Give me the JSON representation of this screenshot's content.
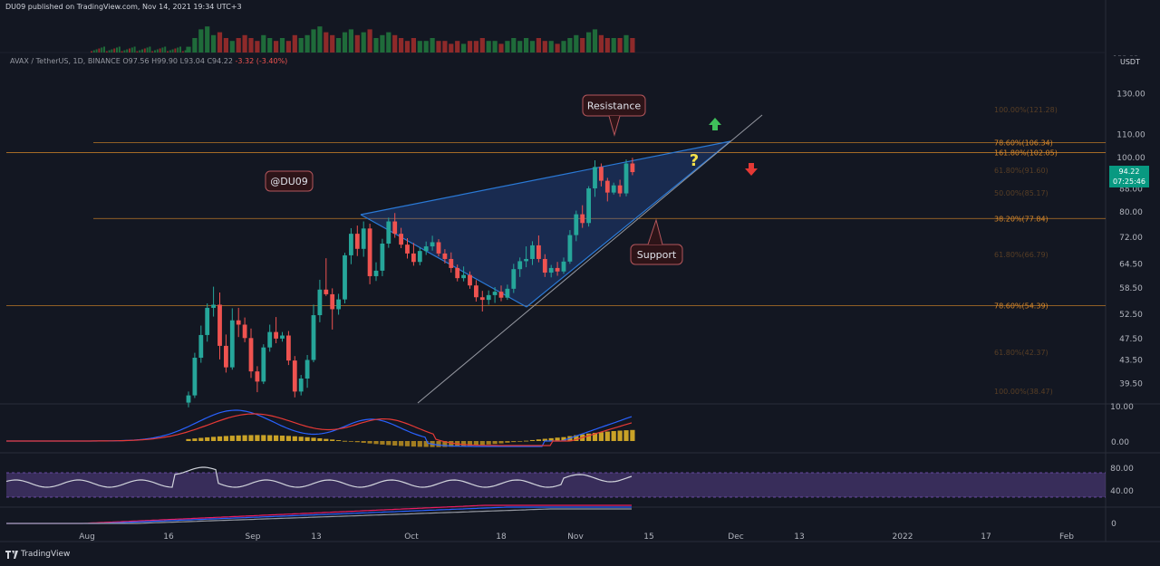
{
  "header": {
    "published": "DU09 published on TradingView.com, Nov 14, 2021 19:34 UTC+3",
    "symbol": "AVAX / TetherUS, 1D, BINANCE",
    "ohlc": "O97.56  H99.90  L93.04  C94.22",
    "change": "-3.32 (-3.40%)"
  },
  "brand": "TradingView",
  "currency": "USDT",
  "price_badge": {
    "price": "94.22",
    "countdown": "07:25:46",
    "color": "#089981"
  },
  "colors": {
    "up": "#26a69a",
    "down": "#ef5350",
    "background": "#131722",
    "fib": "#d8882a",
    "wedge": "#2a79d6"
  },
  "annotations": {
    "author_tag": "@DU09",
    "resistance": "Resistance",
    "support": "Support",
    "question": "?",
    "up_arrow": "green-up-arrow-icon",
    "down_arrow": "red-down-arrow-icon"
  },
  "chart_data": {
    "type": "candlestick",
    "y_scale": "log",
    "price_ticks": [
      "130.00",
      "110.00",
      "100.00",
      "88.00",
      "80.00",
      "72.00",
      "64.50",
      "58.50",
      "52.50",
      "47.50",
      "43.50",
      "39.50"
    ],
    "top_partial_tick": "150.00",
    "time_ticks": [
      "Aug",
      "16",
      "Sep",
      "13",
      "Oct",
      "18",
      "Nov",
      "15",
      "Dec",
      "13",
      "2022",
      "17",
      "Feb"
    ],
    "fib_levels": [
      {
        "label": "78.60%(106.34)",
        "price": 106.34
      },
      {
        "label": "161.80%(102.05)",
        "price": 102.05
      },
      {
        "label": "38.20%(77.84)",
        "price": 77.84
      },
      {
        "label": "78.60%(54.39)",
        "price": 54.39
      }
    ],
    "faded_levels": [
      "100.00%(121.28)",
      "61.80%(91.60)",
      "50.00%(85.17)",
      "61.80%(66.79)",
      "61.80%(42.37)",
      "100.00%(38.47)"
    ],
    "candles": [
      {
        "o": 36.5,
        "h": 38.2,
        "l": 35.8,
        "c": 37.6
      },
      {
        "o": 37.6,
        "h": 44.8,
        "l": 37.2,
        "c": 43.9
      },
      {
        "o": 43.9,
        "h": 50.1,
        "l": 43.0,
        "c": 48.2
      },
      {
        "o": 48.2,
        "h": 54.9,
        "l": 46.9,
        "c": 53.9
      },
      {
        "o": 53.9,
        "h": 58.8,
        "l": 52.0,
        "c": 54.6
      },
      {
        "o": 54.6,
        "h": 57.4,
        "l": 43.6,
        "c": 46.1
      },
      {
        "o": 46.1,
        "h": 48.3,
        "l": 41.3,
        "c": 42.2
      },
      {
        "o": 42.2,
        "h": 53.8,
        "l": 41.8,
        "c": 51.2
      },
      {
        "o": 51.2,
        "h": 53.9,
        "l": 47.8,
        "c": 50.3
      },
      {
        "o": 50.3,
        "h": 51.8,
        "l": 46.8,
        "c": 47.6
      },
      {
        "o": 47.6,
        "h": 49.5,
        "l": 40.4,
        "c": 41.5
      },
      {
        "o": 41.5,
        "h": 42.4,
        "l": 38.1,
        "c": 39.8
      },
      {
        "o": 39.8,
        "h": 46.4,
        "l": 39.4,
        "c": 45.8
      },
      {
        "o": 45.8,
        "h": 50.3,
        "l": 45.0,
        "c": 48.8
      },
      {
        "o": 48.8,
        "h": 51.9,
        "l": 46.6,
        "c": 47.5
      },
      {
        "o": 47.5,
        "h": 48.8,
        "l": 46.9,
        "c": 48.1
      },
      {
        "o": 48.1,
        "h": 49.0,
        "l": 42.6,
        "c": 43.4
      },
      {
        "o": 43.4,
        "h": 44.2,
        "l": 37.3,
        "c": 38.2
      },
      {
        "o": 38.2,
        "h": 40.9,
        "l": 37.6,
        "c": 40.3
      },
      {
        "o": 40.3,
        "h": 44.4,
        "l": 38.8,
        "c": 43.5
      },
      {
        "o": 43.5,
        "h": 54.6,
        "l": 43.1,
        "c": 52.3
      },
      {
        "o": 52.3,
        "h": 60.5,
        "l": 50.8,
        "c": 58.1
      },
      {
        "o": 58.1,
        "h": 66.1,
        "l": 56.6,
        "c": 57.0
      },
      {
        "o": 57.0,
        "h": 58.4,
        "l": 49.3,
        "c": 53.6
      },
      {
        "o": 53.6,
        "h": 57.1,
        "l": 52.4,
        "c": 55.8
      },
      {
        "o": 55.8,
        "h": 67.6,
        "l": 54.9,
        "c": 66.9
      },
      {
        "o": 66.9,
        "h": 74.8,
        "l": 64.5,
        "c": 73.1
      },
      {
        "o": 73.1,
        "h": 75.6,
        "l": 66.7,
        "c": 68.7
      },
      {
        "o": 68.7,
        "h": 76.9,
        "l": 66.5,
        "c": 74.7
      },
      {
        "o": 74.7,
        "h": 76.2,
        "l": 59.4,
        "c": 61.4
      },
      {
        "o": 61.4,
        "h": 65.0,
        "l": 60.2,
        "c": 62.8
      },
      {
        "o": 62.8,
        "h": 71.6,
        "l": 61.4,
        "c": 70.2
      },
      {
        "o": 70.2,
        "h": 78.1,
        "l": 69.0,
        "c": 76.9
      },
      {
        "o": 76.9,
        "h": 79.6,
        "l": 71.9,
        "c": 73.1
      },
      {
        "o": 73.1,
        "h": 74.9,
        "l": 68.9,
        "c": 69.9
      },
      {
        "o": 69.9,
        "h": 71.8,
        "l": 66.0,
        "c": 67.4
      },
      {
        "o": 67.4,
        "h": 70.4,
        "l": 64.1,
        "c": 65.1
      },
      {
        "o": 65.1,
        "h": 69.2,
        "l": 64.2,
        "c": 68.1
      },
      {
        "o": 68.1,
        "h": 70.8,
        "l": 67.0,
        "c": 69.4
      },
      {
        "o": 69.4,
        "h": 72.5,
        "l": 68.2,
        "c": 70.6
      },
      {
        "o": 70.6,
        "h": 71.5,
        "l": 66.6,
        "c": 67.4
      },
      {
        "o": 67.4,
        "h": 68.6,
        "l": 64.7,
        "c": 65.9
      },
      {
        "o": 65.9,
        "h": 67.7,
        "l": 62.3,
        "c": 63.5
      },
      {
        "o": 63.5,
        "h": 64.4,
        "l": 60.1,
        "c": 60.9
      },
      {
        "o": 60.9,
        "h": 63.9,
        "l": 60.1,
        "c": 61.7
      },
      {
        "o": 61.7,
        "h": 62.6,
        "l": 58.3,
        "c": 59.1
      },
      {
        "o": 59.1,
        "h": 60.4,
        "l": 55.3,
        "c": 56.3
      },
      {
        "o": 56.3,
        "h": 57.8,
        "l": 53.1,
        "c": 55.7
      },
      {
        "o": 55.7,
        "h": 57.9,
        "l": 54.6,
        "c": 56.8
      },
      {
        "o": 56.8,
        "h": 58.7,
        "l": 55.0,
        "c": 57.6
      },
      {
        "o": 57.6,
        "h": 59.1,
        "l": 55.4,
        "c": 56.2
      },
      {
        "o": 56.2,
        "h": 59.3,
        "l": 55.7,
        "c": 58.3
      },
      {
        "o": 58.3,
        "h": 64.6,
        "l": 57.3,
        "c": 63.2
      },
      {
        "o": 63.2,
        "h": 66.3,
        "l": 61.2,
        "c": 65.3
      },
      {
        "o": 65.3,
        "h": 69.4,
        "l": 63.7,
        "c": 65.9
      },
      {
        "o": 65.9,
        "h": 70.9,
        "l": 64.3,
        "c": 69.7
      },
      {
        "o": 69.7,
        "h": 72.6,
        "l": 65.0,
        "c": 65.9
      },
      {
        "o": 65.9,
        "h": 67.2,
        "l": 61.2,
        "c": 62.3
      },
      {
        "o": 62.3,
        "h": 64.3,
        "l": 61.1,
        "c": 63.5
      },
      {
        "o": 63.5,
        "h": 65.1,
        "l": 61.5,
        "c": 62.6
      },
      {
        "o": 62.6,
        "h": 66.3,
        "l": 62.0,
        "c": 65.2
      },
      {
        "o": 65.2,
        "h": 74.2,
        "l": 64.6,
        "c": 72.7
      },
      {
        "o": 72.7,
        "h": 80.4,
        "l": 70.9,
        "c": 79.2
      },
      {
        "o": 79.2,
        "h": 82.2,
        "l": 74.9,
        "c": 76.4
      },
      {
        "o": 76.4,
        "h": 88.9,
        "l": 75.3,
        "c": 88.1
      },
      {
        "o": 88.1,
        "h": 98.9,
        "l": 85.1,
        "c": 96.2
      },
      {
        "o": 96.2,
        "h": 97.6,
        "l": 88.8,
        "c": 90.9
      },
      {
        "o": 90.9,
        "h": 92.0,
        "l": 83.5,
        "c": 86.6
      },
      {
        "o": 86.6,
        "h": 90.2,
        "l": 85.9,
        "c": 89.2
      },
      {
        "o": 89.2,
        "h": 91.3,
        "l": 85.1,
        "c": 86.3
      },
      {
        "o": 86.3,
        "h": 99.2,
        "l": 85.3,
        "c": 97.6
      },
      {
        "o": 97.6,
        "h": 99.9,
        "l": 93.0,
        "c": 94.2
      }
    ],
    "volume": [
      2,
      5,
      8,
      9,
      6,
      7,
      5,
      4,
      5,
      6,
      5,
      4,
      6,
      5,
      4,
      5,
      4,
      6,
      5,
      6,
      8,
      9,
      7,
      6,
      5,
      7,
      8,
      6,
      7,
      8,
      5,
      6,
      7,
      6,
      5,
      4,
      5,
      4,
      4,
      5,
      4,
      4,
      3,
      4,
      3,
      4,
      4,
      5,
      4,
      4,
      3,
      4,
      5,
      4,
      5,
      4,
      5,
      4,
      4,
      3,
      4,
      5,
      6,
      5,
      7,
      8,
      6,
      5,
      5,
      5,
      6,
      5
    ],
    "indicators": {
      "macd": {
        "ticks": [
          "10.00",
          "0.00"
        ]
      },
      "rsi": {
        "ticks": [
          "80.00",
          "40.00"
        ]
      },
      "third": {
        "ticks": [
          "0"
        ]
      }
    }
  }
}
